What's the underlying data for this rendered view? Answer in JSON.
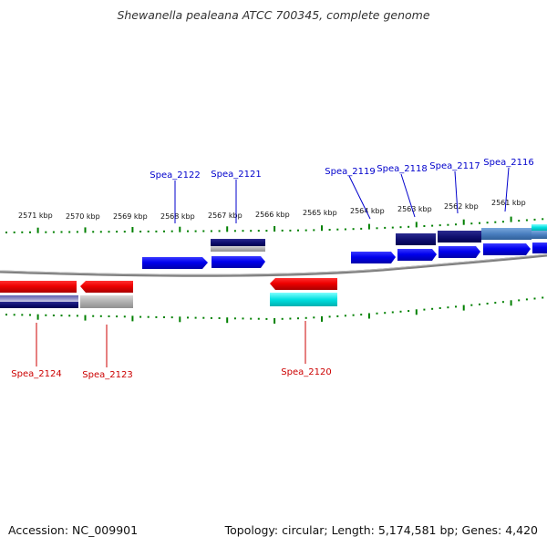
{
  "title": "Shewanella pealeana ATCC 700345, complete genome",
  "footer": {
    "accession": "Accession: NC_009901",
    "summary": "Topology: circular; Length: 5,174,581 bp; Genes: 4,420"
  },
  "colors": {
    "forward_label": "#0000cc",
    "reverse_label": "#cc0000",
    "tick": "#008000",
    "backbone": "#808080"
  },
  "scale_labels": [
    "2571 kbp",
    "2570 kbp",
    "2569 kbp",
    "2568 kbp",
    "2567 kbp",
    "2566 kbp",
    "2565 kbp",
    "2564 kbp",
    "2563 kbp",
    "2562 kbp",
    "2561 kbp"
  ],
  "forward_genes": [
    "Spea_2122",
    "Spea_2121",
    "Spea_2119",
    "Spea_2118",
    "Spea_2117",
    "Spea_2116"
  ],
  "reverse_genes": [
    "Spea_2124",
    "Spea_2123",
    "Spea_2120"
  ]
}
